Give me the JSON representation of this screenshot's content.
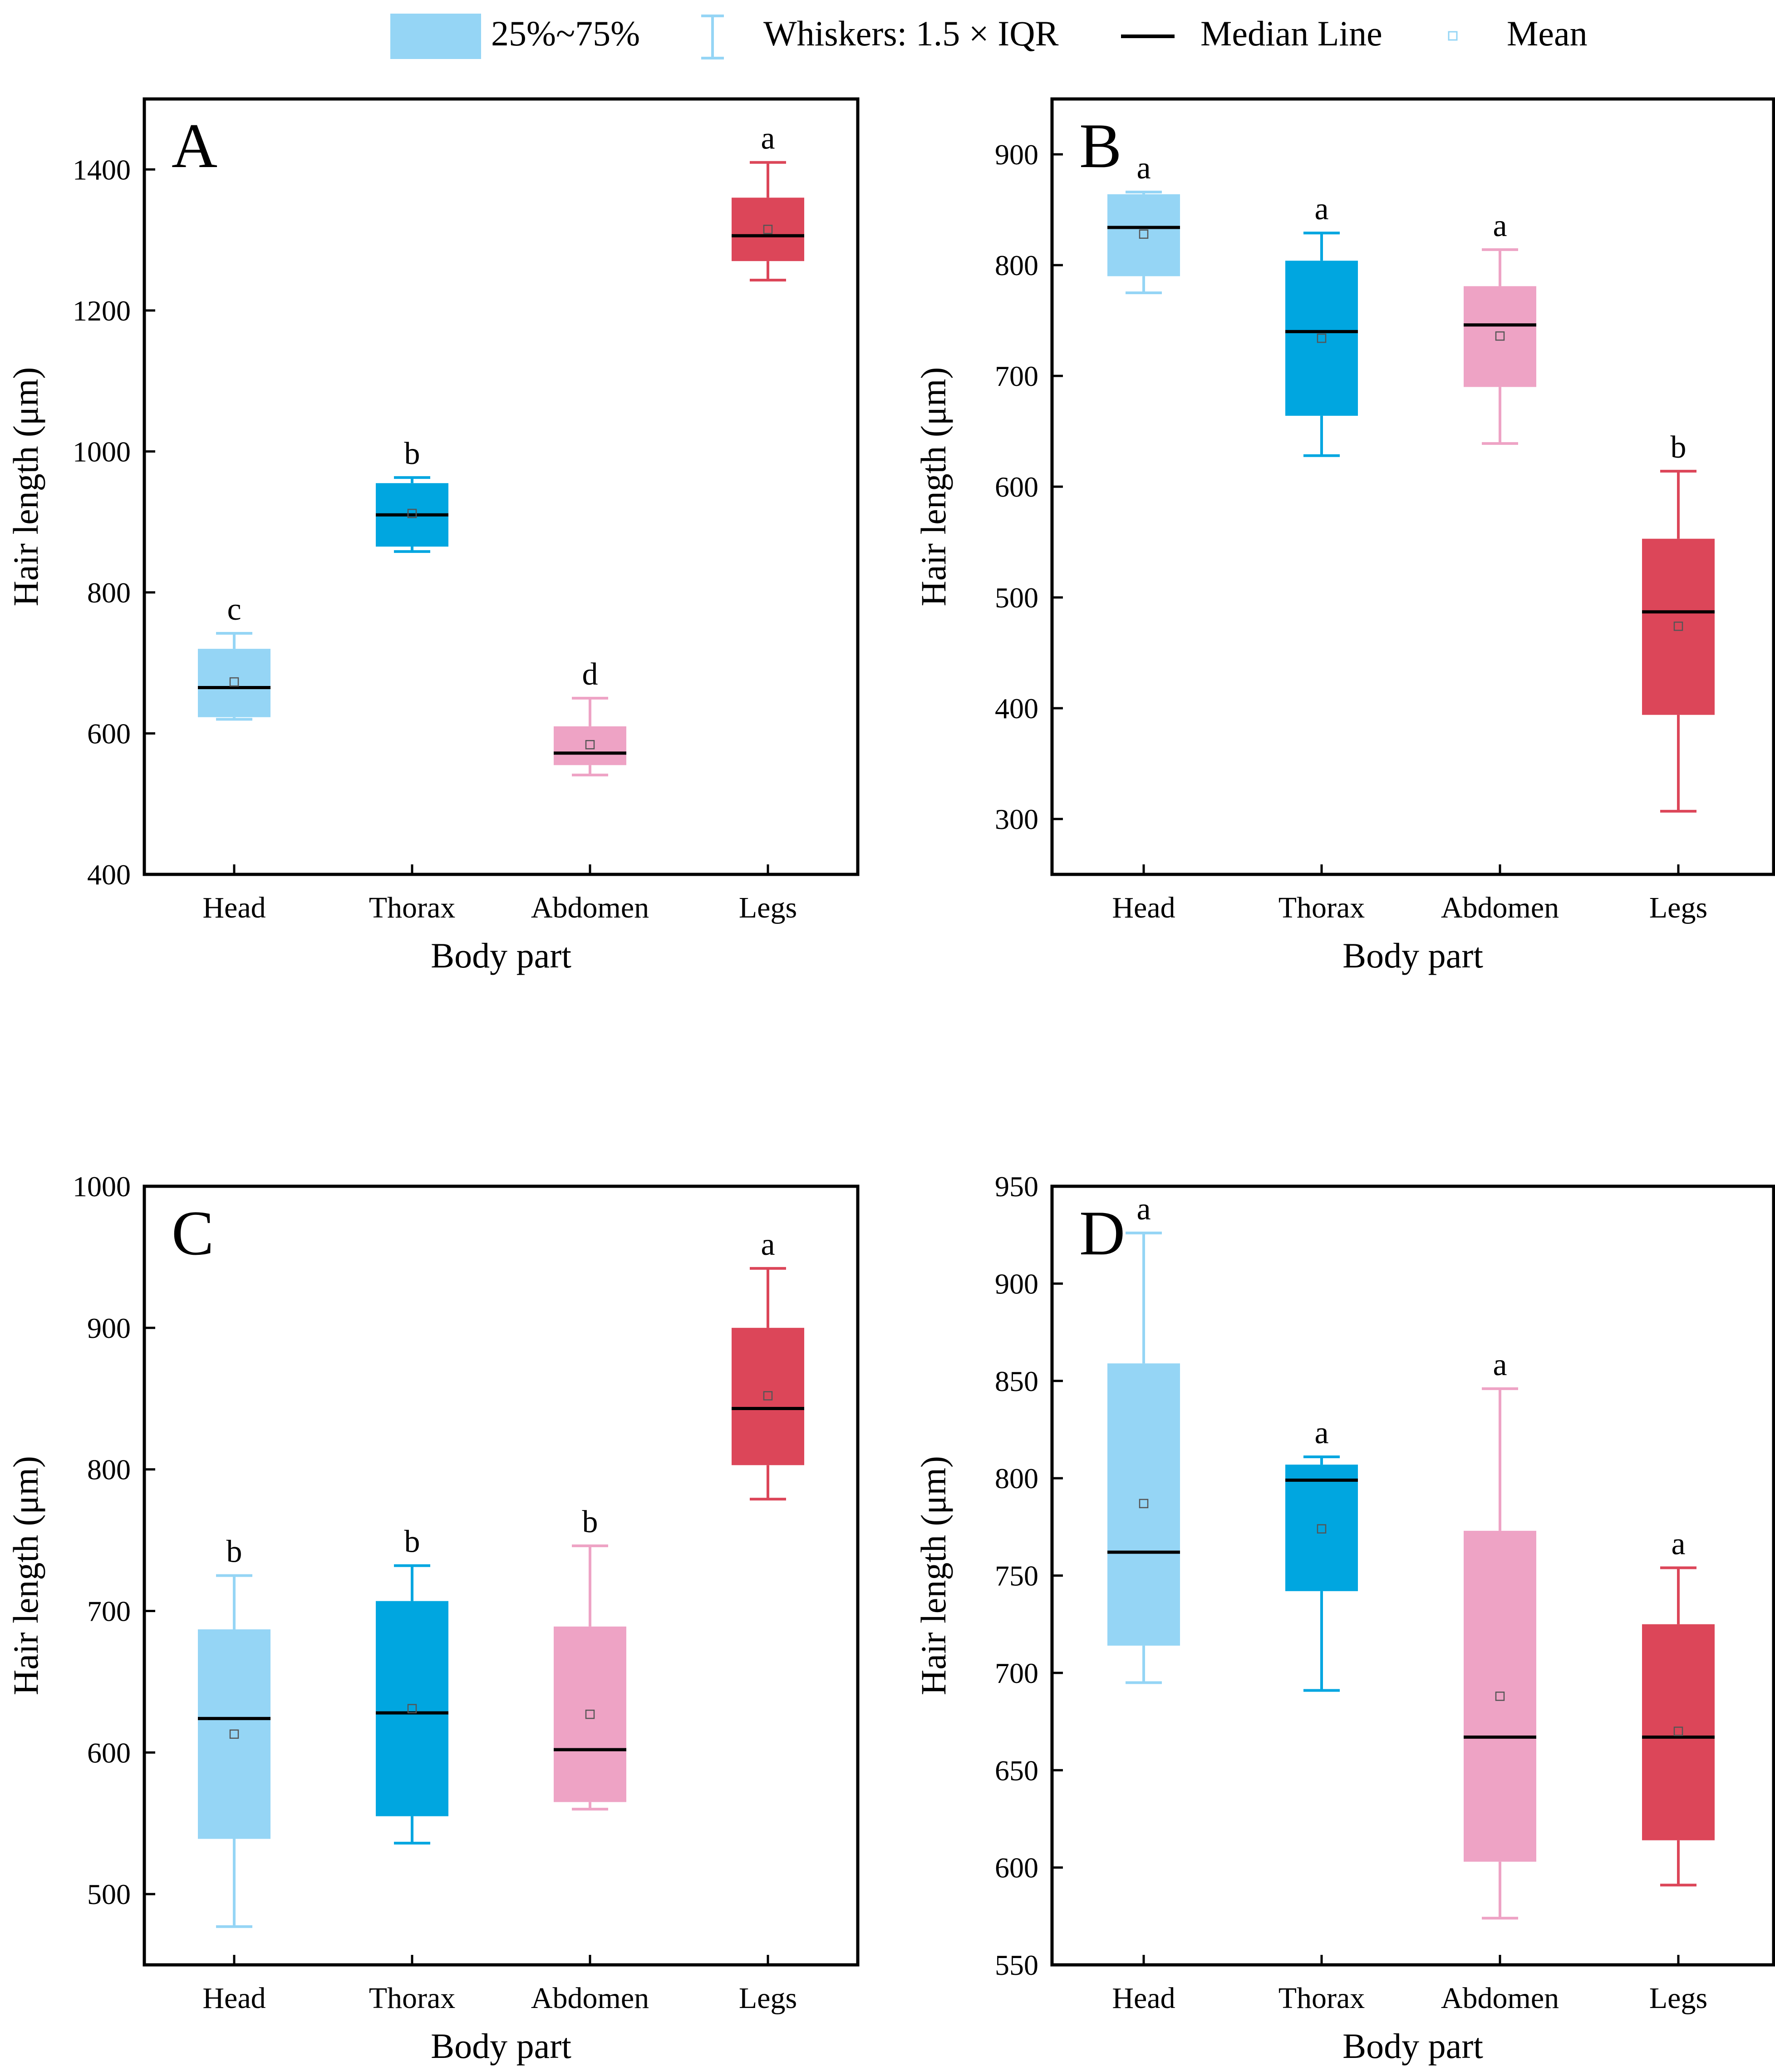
{
  "legend": {
    "box_label": "25%~75%",
    "whisker_label": "Whiskers: 1.5 × IQR",
    "median_label": "Median Line",
    "mean_label": "Mean"
  },
  "colors": {
    "Head": "#95d5f5",
    "Thorax": "#00a6e0",
    "Abdomen": "#eea3c5",
    "Legs": "#dc4659",
    "frame": "#000000",
    "median": "#000000"
  },
  "chart_data": [
    {
      "type": "box",
      "panel": "A",
      "xlabel": "Body part",
      "ylabel": "Hair length (μm)",
      "categories": [
        "Head",
        "Thorax",
        "Abdomen",
        "Legs"
      ],
      "ylim": [
        400,
        1500
      ],
      "yticks": [
        400,
        600,
        800,
        1000,
        1200,
        1400
      ],
      "boxes": [
        {
          "category": "Head",
          "whisker_low": 620,
          "q1": 623,
          "median": 665,
          "q3": 720,
          "whisker_high": 742,
          "mean": 673,
          "letter": "c"
        },
        {
          "category": "Thorax",
          "whisker_low": 858,
          "q1": 865,
          "median": 910,
          "q3": 955,
          "whisker_high": 963,
          "mean": 912,
          "letter": "b"
        },
        {
          "category": "Abdomen",
          "whisker_low": 541,
          "q1": 555,
          "median": 572,
          "q3": 610,
          "whisker_high": 650,
          "mean": 584,
          "letter": "d"
        },
        {
          "category": "Legs",
          "whisker_low": 1243,
          "q1": 1270,
          "median": 1306,
          "q3": 1360,
          "whisker_high": 1410,
          "mean": 1315,
          "letter": "a"
        }
      ]
    },
    {
      "type": "box",
      "panel": "B",
      "xlabel": "Body part",
      "ylabel": "Hair length (μm)",
      "categories": [
        "Head",
        "Thorax",
        "Abdomen",
        "Legs"
      ],
      "ylim": [
        250,
        950
      ],
      "yticks": [
        300,
        400,
        500,
        600,
        700,
        800,
        900
      ],
      "boxes": [
        {
          "category": "Head",
          "whisker_low": 775,
          "q1": 790,
          "median": 834,
          "q3": 864,
          "whisker_high": 866,
          "mean": 828,
          "letter": "a"
        },
        {
          "category": "Thorax",
          "whisker_low": 628,
          "q1": 664,
          "median": 740,
          "q3": 804,
          "whisker_high": 829,
          "mean": 734,
          "letter": "a"
        },
        {
          "category": "Abdomen",
          "whisker_low": 639,
          "q1": 690,
          "median": 746,
          "q3": 781,
          "whisker_high": 814,
          "mean": 736,
          "letter": "a"
        },
        {
          "category": "Legs",
          "whisker_low": 307,
          "q1": 394,
          "median": 487,
          "q3": 553,
          "whisker_high": 614,
          "mean": 474,
          "letter": "b"
        }
      ]
    },
    {
      "type": "box",
      "panel": "C",
      "xlabel": "Body part",
      "ylabel": "Hair length (μm)",
      "categories": [
        "Head",
        "Thorax",
        "Abdomen",
        "Legs"
      ],
      "ylim": [
        450,
        1000
      ],
      "yticks": [
        500,
        600,
        700,
        800,
        900,
        1000
      ],
      "boxes": [
        {
          "category": "Head",
          "whisker_low": 477,
          "q1": 539,
          "median": 624,
          "q3": 687,
          "whisker_high": 725,
          "mean": 613,
          "letter": "b"
        },
        {
          "category": "Thorax",
          "whisker_low": 536,
          "q1": 555,
          "median": 628,
          "q3": 707,
          "whisker_high": 732,
          "mean": 631,
          "letter": "b"
        },
        {
          "category": "Abdomen",
          "whisker_low": 560,
          "q1": 565,
          "median": 602,
          "q3": 689,
          "whisker_high": 746,
          "mean": 627,
          "letter": "b"
        },
        {
          "category": "Legs",
          "whisker_low": 779,
          "q1": 803,
          "median": 843,
          "q3": 900,
          "whisker_high": 942,
          "mean": 852,
          "letter": "a"
        }
      ]
    },
    {
      "type": "box",
      "panel": "D",
      "xlabel": "Body part",
      "ylabel": "Hair length (μm)",
      "categories": [
        "Head",
        "Thorax",
        "Abdomen",
        "Legs"
      ],
      "ylim": [
        550,
        950
      ],
      "yticks": [
        550,
        600,
        650,
        700,
        750,
        800,
        850,
        900,
        950
      ],
      "boxes": [
        {
          "category": "Head",
          "whisker_low": 695,
          "q1": 714,
          "median": 762,
          "q3": 859,
          "whisker_high": 926,
          "mean": 787,
          "letter": "a"
        },
        {
          "category": "Thorax",
          "whisker_low": 691,
          "q1": 742,
          "median": 799,
          "q3": 807,
          "whisker_high": 811,
          "mean": 774,
          "letter": "a"
        },
        {
          "category": "Abdomen",
          "whisker_low": 574,
          "q1": 603,
          "median": 667,
          "q3": 773,
          "whisker_high": 846,
          "mean": 688,
          "letter": "a"
        },
        {
          "category": "Legs",
          "whisker_low": 591,
          "q1": 614,
          "median": 667,
          "q3": 725,
          "whisker_high": 754,
          "mean": 670,
          "letter": "a"
        }
      ]
    }
  ]
}
